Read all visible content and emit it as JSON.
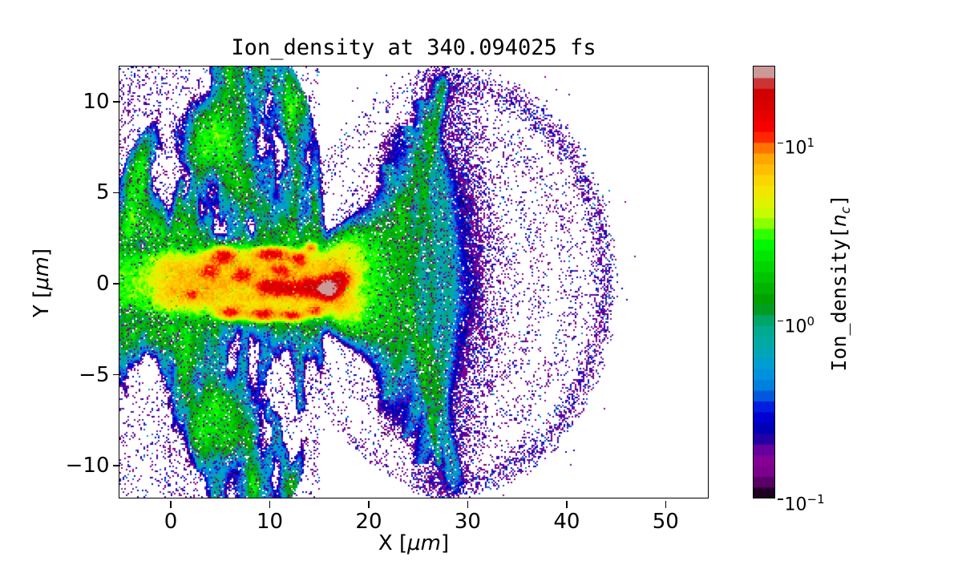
{
  "chart_data": {
    "type": "heatmap",
    "title": "Ion_density at 340.094025 fs",
    "xlabel_prefix": "X [",
    "xlabel_unit": "μm",
    "xlabel_suffix": "]",
    "ylabel_prefix": "Y [",
    "ylabel_unit": "μm",
    "ylabel_suffix": "]",
    "x_range": [
      -5.03,
      54.43
    ],
    "y_range": [
      -11.85,
      11.85
    ],
    "x_ticks": {
      "values": [
        0,
        10,
        20,
        30,
        40,
        50
      ],
      "labels": [
        "0",
        "10",
        "20",
        "30",
        "40",
        "50"
      ]
    },
    "y_ticks": {
      "values": [
        10,
        5,
        0,
        -5,
        -10
      ],
      "labels": [
        "10",
        "5",
        "0",
        "−5",
        "−10"
      ]
    },
    "grid": false,
    "colorbar": {
      "label_prefix": "Ion_density[",
      "label_var": "n",
      "label_sub": "c",
      "label_suffix": "]",
      "scale": "log",
      "vmin": 0.1,
      "vmax": 26.3,
      "levels": 40,
      "colormap": "nipy_spectral",
      "ticks": [
        {
          "value": 10,
          "mantissa": "10",
          "exponent": "1"
        },
        {
          "value": 1,
          "mantissa": "10",
          "exponent": "0"
        },
        {
          "value": 0.1,
          "mantissa": "10",
          "exponent": "−1"
        }
      ]
    },
    "features": [
      "central high-density plasma channel along y≈0 from x≈-5 to x≈20 μm, 5–15 nc (yellow/orange), with red filament hot spots 10–25 nc near its upper/lower edges and along y≈-0.3",
      "saturated gray spot (> colormap max, ≈30 nc) at approximately (16, -0.3)",
      "green moderate-density lobes ≈2–3 nc centered near (4.5, 7.6) and (5.3, -7.8)",
      "streaky cyan/teal cloud 0.5–1.5 nc with purple speckle and white holes filling x ≲ 15, truncated sharply near x≈15.3",
      "thin teal filaments radiating from the channel head near x≈0 and vertical ribs at x≈7.5 and x≈12.5",
      "blue/cyan expansion bubble 0.3–0.8 nc for 16 ≲ x ≲ 28 with teal arc filaments and a density front near x≈28",
      "narrow plumes extending to about (27.5, 11) and (28.5, -10.5)",
      "sparse purple halo ≈0.1–0.2 nc of scattered pixels bounded by an arc reaching x≈45, |y| ≲ 11.5, with a denser speckle shell just outside the bubble front and near the outer arc"
    ]
  }
}
